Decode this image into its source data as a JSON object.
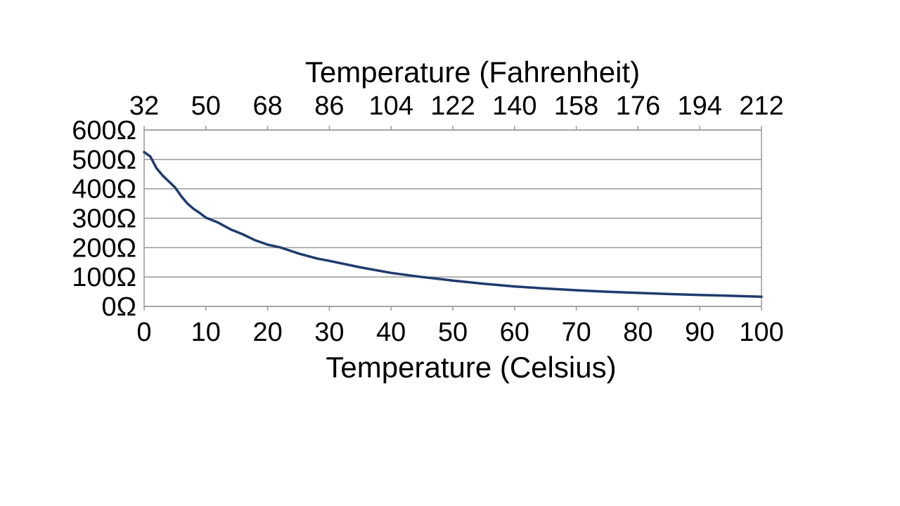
{
  "chart_data": {
    "type": "line",
    "title": "",
    "xlabel": "Temperature (Celsius)",
    "x2label": "Temperature (Fahrenheit)",
    "ylabel": "",
    "xlim": [
      0,
      100
    ],
    "ylim": [
      0,
      600
    ],
    "x_ticks": [
      "0",
      "10",
      "20",
      "30",
      "40",
      "50",
      "60",
      "70",
      "80",
      "90",
      "100"
    ],
    "x2_ticks": [
      "32",
      "50",
      "68",
      "86",
      "104",
      "122",
      "140",
      "158",
      "176",
      "194",
      "212"
    ],
    "y_ticks": [
      "0Ω",
      "100Ω",
      "200Ω",
      "300Ω",
      "400Ω",
      "500Ω",
      "600Ω"
    ],
    "grid": true,
    "legend": "none",
    "colors": {
      "line": "#1f3b6e",
      "grid": "#999999",
      "axis": "#999999"
    },
    "x": [
      0,
      1,
      2,
      3,
      4,
      5,
      6,
      7,
      8,
      9,
      10,
      12,
      14,
      16,
      18,
      20,
      22,
      25,
      28,
      30,
      35,
      40,
      45,
      50,
      55,
      60,
      65,
      70,
      75,
      80,
      85,
      90,
      95,
      100
    ],
    "y": [
      525,
      510,
      470,
      445,
      425,
      405,
      375,
      350,
      332,
      318,
      302,
      285,
      262,
      245,
      225,
      210,
      201,
      180,
      163,
      155,
      133,
      114,
      100,
      88,
      77,
      68,
      61,
      55,
      50,
      46,
      42,
      39,
      36,
      33
    ]
  }
}
